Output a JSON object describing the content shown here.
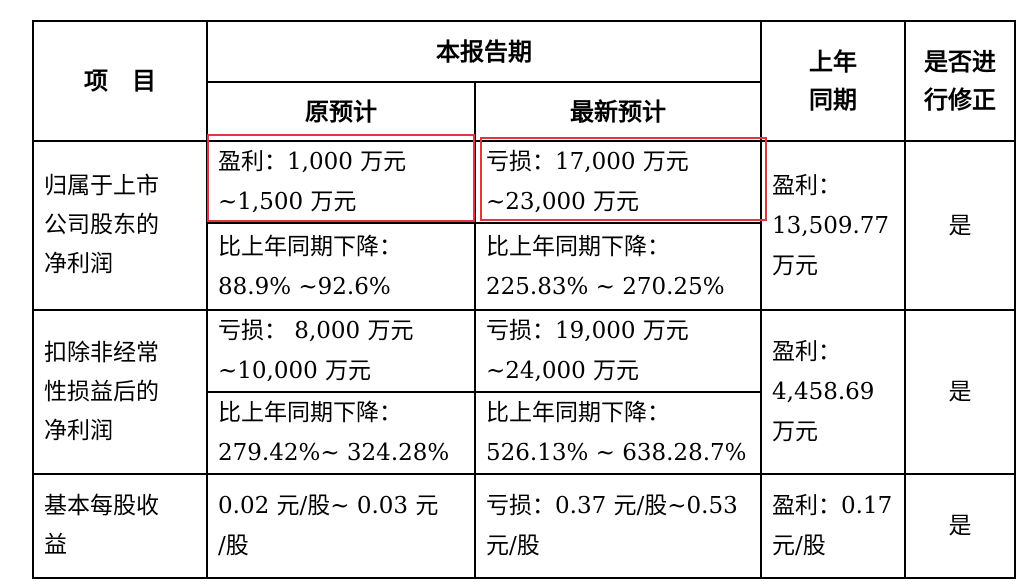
{
  "header": {
    "item": "项　目",
    "period": "本报告期",
    "original": "原预计",
    "latest": "最新预计",
    "prior_year_line1": "上年",
    "prior_year_line2": "同期",
    "revised_line1": "是否进",
    "revised_line2": "行修正"
  },
  "rows": [
    {
      "label_lines": [
        "归属于上市",
        "公司股东的",
        "净利润"
      ],
      "original_amount": [
        "盈利：1,000 万元",
        "~1,500 万元"
      ],
      "original_change": [
        "比上年同期下降：",
        "88.9% ~92.6%"
      ],
      "latest_amount": [
        "亏损：17,000 万元",
        "~23,000 万元"
      ],
      "latest_change": [
        "比上年同期下降：",
        "225.83% ~ 270.25%"
      ],
      "prior": [
        "盈利：",
        "13,509.77",
        "万元"
      ],
      "revised": "是"
    },
    {
      "label_lines": [
        "扣除非经常",
        "性损益后的",
        "净利润"
      ],
      "original_amount": [
        "亏损： 8,000 万元",
        "~10,000 万元"
      ],
      "original_change": [
        "比上年同期下降：",
        "279.42%~ 324.28%"
      ],
      "latest_amount": [
        "亏损：19,000 万元",
        "~24,000 万元"
      ],
      "latest_change": [
        "比上年同期下降：",
        "526.13% ~ 638.28.7%"
      ],
      "prior": [
        "盈利：",
        "4,458.69",
        "万元"
      ],
      "revised": "是"
    },
    {
      "label_lines": [
        "基本每股收",
        "益"
      ],
      "original_amount": [
        "0.02 元/股~ 0.03 元",
        "/股"
      ],
      "latest_amount": [
        "亏损：0.37 元/股~0.53",
        "元/股"
      ],
      "prior": [
        "盈利：0.17",
        "元/股"
      ],
      "revised": "是"
    }
  ],
  "highlight_color": "#e6333f"
}
